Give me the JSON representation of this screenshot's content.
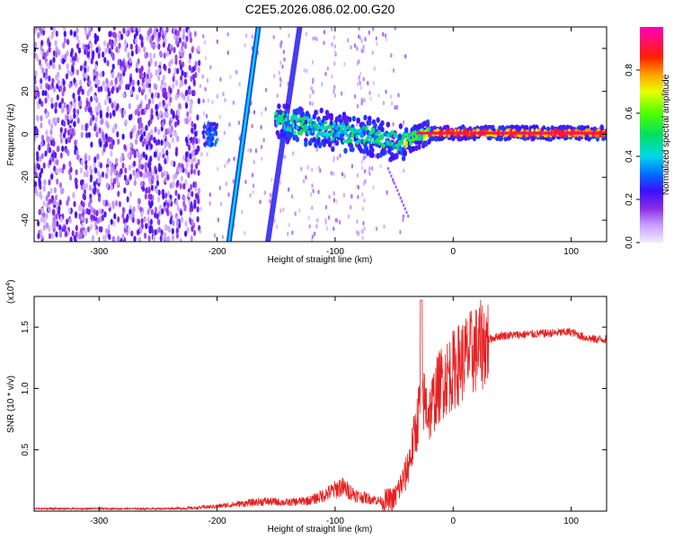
{
  "chart_data": [
    {
      "type": "heatmap",
      "title": "C2E5.2026.086.02.00.G20",
      "xlabel": "Height of straight line (km)",
      "ylabel": "Frequency (Hz)",
      "xlim": [
        -355,
        130
      ],
      "ylim": [
        -50,
        50
      ],
      "xticks": [
        -300,
        -200,
        -100,
        0,
        100
      ],
      "yticks": [
        -40,
        -20,
        0,
        20,
        40
      ],
      "colorbar": {
        "label": "Normalized spectral amplitude",
        "range": [
          0.0,
          1.0
        ],
        "ticks": [
          0.0,
          0.2,
          0.4,
          0.6,
          0.8
        ]
      },
      "features": {
        "noise_region_x": [
          -355,
          -215
        ],
        "diagonal_streaks": [
          {
            "x0": -190,
            "y0": -50,
            "x1": -165,
            "y1": 50
          },
          {
            "x0": -157,
            "y0": -50,
            "x1": -130,
            "y1": 50
          }
        ],
        "carrier_center_hz": 0,
        "carrier_start_x": -150
      }
    },
    {
      "type": "line",
      "title": "",
      "xlabel": "Height of straight line (km)",
      "ylabel": "SNR (10 * v/v)",
      "exponent": "(x10",
      "exponent_power": "4",
      "exponent_close": ")",
      "xlim": [
        -355,
        130
      ],
      "ylim": [
        0,
        1.75
      ],
      "xticks": [
        -300,
        -200,
        -100,
        0,
        100
      ],
      "yticks": [
        0.5,
        1.0,
        1.5
      ],
      "ytick_labels": [
        "0.5",
        "1.0",
        "1.5"
      ],
      "line_color": "#e62020",
      "x": [
        -355,
        -300,
        -250,
        -220,
        -200,
        -180,
        -160,
        -140,
        -120,
        -105,
        -95,
        -80,
        -60,
        -50,
        -45,
        -40,
        -35,
        -30,
        -27,
        -25,
        -20,
        -15,
        -10,
        -5,
        0,
        5,
        10,
        20,
        30,
        40,
        60,
        80,
        100,
        110,
        120,
        130
      ],
      "y": [
        0.02,
        0.02,
        0.02,
        0.025,
        0.04,
        0.06,
        0.08,
        0.07,
        0.09,
        0.15,
        0.2,
        0.12,
        0.08,
        0.1,
        0.2,
        0.3,
        0.5,
        0.75,
        1.0,
        0.9,
        0.8,
        0.95,
        1.05,
        1.1,
        1.15,
        1.2,
        1.25,
        1.32,
        1.4,
        1.43,
        1.44,
        1.45,
        1.46,
        1.42,
        1.4,
        1.4
      ]
    }
  ]
}
